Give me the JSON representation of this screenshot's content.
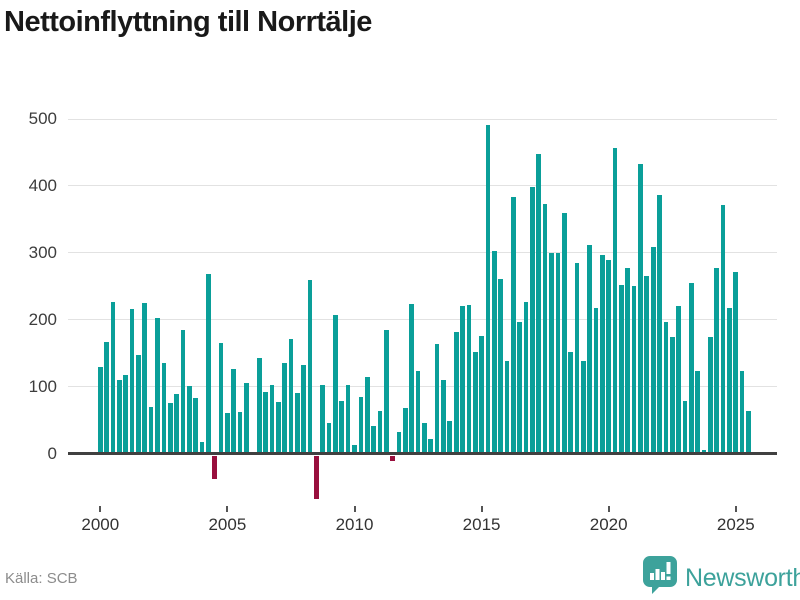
{
  "title": "Nettoinflyttning till Norrtälje",
  "source": "Källa: SCB",
  "brand": {
    "name": "Newsworthy",
    "icon": "newsworthy-bar-chart-bubble-icon",
    "color": "#3da29b"
  },
  "colors": {
    "positive_bar": "#0a9f99",
    "negative_bar": "#990f3d",
    "gridline": "#e2e2e2",
    "zero_axis": "#404040",
    "title_text": "#191919",
    "tick_text": "#3d3d3d",
    "source_text": "#8c8c8c"
  },
  "chart_data": {
    "type": "bar",
    "title": "Nettoinflyttning till Norrtälje",
    "xlabel": "",
    "ylabel": "",
    "ylim": [
      -80,
      500
    ],
    "yticks": [
      "0",
      "100",
      "200",
      "300",
      "400",
      "500"
    ],
    "ytick_values": [
      0,
      100,
      200,
      300,
      400,
      500
    ],
    "xticks": [
      "2000",
      "2005",
      "2010",
      "2015",
      "2020",
      "2025"
    ],
    "grid": "horizontal",
    "legend_position": "none",
    "frequency": "quarterly",
    "categories": [
      "2000Q1",
      "2000Q2",
      "2000Q3",
      "2000Q4",
      "2001Q1",
      "2001Q2",
      "2001Q3",
      "2001Q4",
      "2002Q1",
      "2002Q2",
      "2002Q3",
      "2002Q4",
      "2003Q1",
      "2003Q2",
      "2003Q3",
      "2003Q4",
      "2004Q1",
      "2004Q2",
      "2004Q3",
      "2004Q4",
      "2005Q1",
      "2005Q2",
      "2005Q3",
      "2005Q4",
      "2006Q1",
      "2006Q2",
      "2006Q3",
      "2006Q4",
      "2007Q1",
      "2007Q2",
      "2007Q3",
      "2007Q4",
      "2008Q1",
      "2008Q2",
      "2008Q3",
      "2008Q4",
      "2009Q1",
      "2009Q2",
      "2009Q3",
      "2009Q4",
      "2010Q1",
      "2010Q2",
      "2010Q3",
      "2010Q4",
      "2011Q1",
      "2011Q2",
      "2011Q3",
      "2011Q4",
      "2012Q1",
      "2012Q2",
      "2012Q3",
      "2012Q4",
      "2013Q1",
      "2013Q2",
      "2013Q3",
      "2013Q4",
      "2014Q1",
      "2014Q2",
      "2014Q3",
      "2014Q4",
      "2015Q1",
      "2015Q2",
      "2015Q3",
      "2015Q4",
      "2016Q1",
      "2016Q2",
      "2016Q3",
      "2016Q4",
      "2017Q1",
      "2017Q2",
      "2017Q3",
      "2017Q4",
      "2018Q1",
      "2018Q2",
      "2018Q3",
      "2018Q4",
      "2019Q1",
      "2019Q2",
      "2019Q3",
      "2019Q4",
      "2020Q1",
      "2020Q2",
      "2020Q3",
      "2020Q4",
      "2021Q1",
      "2021Q2",
      "2021Q3",
      "2021Q4",
      "2022Q1",
      "2022Q2",
      "2022Q3",
      "2022Q4",
      "2023Q1",
      "2023Q2",
      "2023Q3",
      "2023Q4",
      "2024Q1",
      "2024Q2",
      "2024Q3",
      "2024Q4",
      "2025Q1",
      "2025Q2",
      "2025Q3"
    ],
    "values": [
      130,
      166,
      226,
      110,
      117,
      216,
      147,
      225,
      69,
      203,
      136,
      75,
      89,
      184,
      101,
      83,
      17,
      268,
      -35,
      165,
      60,
      127,
      62,
      106,
      0,
      143,
      92,
      103,
      77,
      136,
      171,
      91,
      133,
      259,
      -64,
      102,
      46,
      207,
      78,
      103,
      12,
      84,
      115,
      41,
      64,
      185,
      -7,
      32,
      68,
      224,
      124,
      45,
      22,
      164,
      110,
      49,
      181,
      221,
      222,
      152,
      175,
      491,
      302,
      261,
      138,
      383,
      197,
      227,
      398,
      447,
      373,
      299,
      299,
      360,
      151,
      285,
      139,
      311,
      218,
      297,
      289,
      456,
      252,
      278,
      250,
      433,
      265,
      308,
      386,
      197,
      174,
      221,
      79,
      255,
      124,
      5,
      174,
      277,
      371,
      217,
      272,
      123,
      64
    ]
  }
}
